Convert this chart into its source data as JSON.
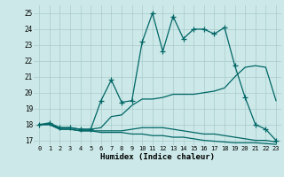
{
  "xlabel": "Humidex (Indice chaleur)",
  "background_color": "#cce8e8",
  "grid_color": "#aacccc",
  "line_color": "#006666",
  "xlim": [
    -0.5,
    23.5
  ],
  "ylim": [
    16.7,
    25.5
  ],
  "xticks": [
    0,
    1,
    2,
    3,
    4,
    5,
    6,
    7,
    8,
    9,
    10,
    11,
    12,
    13,
    14,
    15,
    16,
    17,
    18,
    19,
    20,
    21,
    22,
    23
  ],
  "yticks": [
    17,
    18,
    19,
    20,
    21,
    22,
    23,
    24,
    25
  ],
  "curve_max": [
    18.0,
    18.1,
    17.8,
    17.8,
    17.7,
    17.7,
    19.5,
    20.8,
    19.4,
    19.5,
    23.2,
    25.0,
    22.6,
    24.8,
    23.4,
    24.0,
    24.0,
    23.7,
    24.1,
    21.7,
    19.7,
    18.0,
    17.7,
    17.0
  ],
  "curve_upper": [
    18.0,
    18.0,
    17.8,
    17.8,
    17.7,
    17.7,
    17.8,
    18.5,
    18.6,
    19.2,
    19.6,
    19.6,
    19.7,
    19.9,
    19.9,
    19.9,
    20.0,
    20.1,
    20.3,
    21.0,
    21.6,
    21.7,
    21.6,
    19.5
  ],
  "curve_lower": [
    18.0,
    18.0,
    17.7,
    17.7,
    17.6,
    17.6,
    17.6,
    17.6,
    17.6,
    17.7,
    17.8,
    17.8,
    17.8,
    17.7,
    17.6,
    17.5,
    17.4,
    17.4,
    17.3,
    17.2,
    17.1,
    17.0,
    17.0,
    16.9
  ],
  "curve_min": [
    18.0,
    18.0,
    17.7,
    17.7,
    17.6,
    17.6,
    17.5,
    17.5,
    17.5,
    17.4,
    17.4,
    17.3,
    17.3,
    17.2,
    17.2,
    17.1,
    17.0,
    16.95,
    16.9,
    16.85,
    16.85,
    16.85,
    16.8,
    16.75
  ]
}
